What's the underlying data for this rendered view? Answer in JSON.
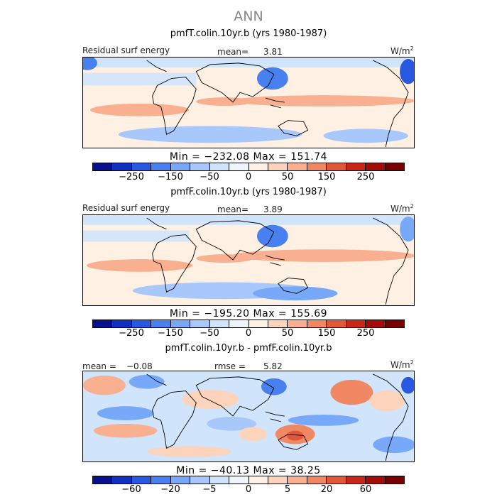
{
  "title": "ANN",
  "unit_label": "W/m",
  "unit_exp": "2",
  "palette": [
    "#08108c",
    "#1030c0",
    "#2858e0",
    "#4880f0",
    "#78a8f8",
    "#a8c8fc",
    "#d0e4fc",
    "#eef4fc",
    "#fff0e4",
    "#fcd4bc",
    "#f8b090",
    "#f08864",
    "#e05838",
    "#c82818",
    "#a00c08",
    "#780000"
  ],
  "panels": [
    {
      "case_title": "pmfT.colin.10yr.b (yrs 1980-1987)",
      "variable": "Residual surf energy",
      "stat_label": "mean=",
      "stat_value": "3.81",
      "min_value": "−232.08",
      "max_value": "151.74",
      "min_max_text": "Min = −232.08  Max = 151.74",
      "ticks": [
        "−250",
        "−150",
        "−50",
        "0",
        "50",
        "150",
        "250"
      ]
    },
    {
      "case_title": "pmfF.colin.10yr.b (yrs 1980-1987)",
      "variable": "Residual surf energy",
      "stat_label": "mean=",
      "stat_value": "3.89",
      "min_value": "−195.20",
      "max_value": "155.69",
      "min_max_text": "Min = −195.20  Max = 155.69",
      "ticks": [
        "−250",
        "−150",
        "−50",
        "0",
        "50",
        "150",
        "250"
      ]
    },
    {
      "case_title": "pmfT.colin.10yr.b - pmfF.colin.10yr.b",
      "left_label": "mean =",
      "left_value": "−0.08",
      "stat_label": "rmse =",
      "stat_value": "5.82",
      "min_value": "−40.13",
      "max_value": "38.25",
      "min_max_text": "Min = −40.13  Max =  38.25",
      "ticks": [
        "−60",
        "−20",
        "−5",
        "0",
        "5",
        "20",
        "60"
      ]
    }
  ],
  "chart_data": [
    {
      "type": "heatmap",
      "title": "pmfT.colin.10yr.b (yrs 1980-1987)",
      "variable": "Residual surf energy",
      "units": "W/m2",
      "mean": 3.81,
      "min": -232.08,
      "max": 151.74,
      "colorbar_ticks": [
        -250,
        -150,
        -50,
        0,
        50,
        150,
        250
      ]
    },
    {
      "type": "heatmap",
      "title": "pmfF.colin.10yr.b (yrs 1980-1987)",
      "variable": "Residual surf energy",
      "units": "W/m2",
      "mean": 3.89,
      "min": -195.2,
      "max": 155.69,
      "colorbar_ticks": [
        -250,
        -150,
        -50,
        0,
        50,
        150,
        250
      ]
    },
    {
      "type": "heatmap",
      "title": "pmfT.colin.10yr.b - pmfF.colin.10yr.b",
      "units": "W/m2",
      "mean": -0.08,
      "rmse": 5.82,
      "min": -40.13,
      "max": 38.25,
      "colorbar_ticks": [
        -60,
        -20,
        -5,
        0,
        5,
        20,
        60
      ]
    }
  ]
}
